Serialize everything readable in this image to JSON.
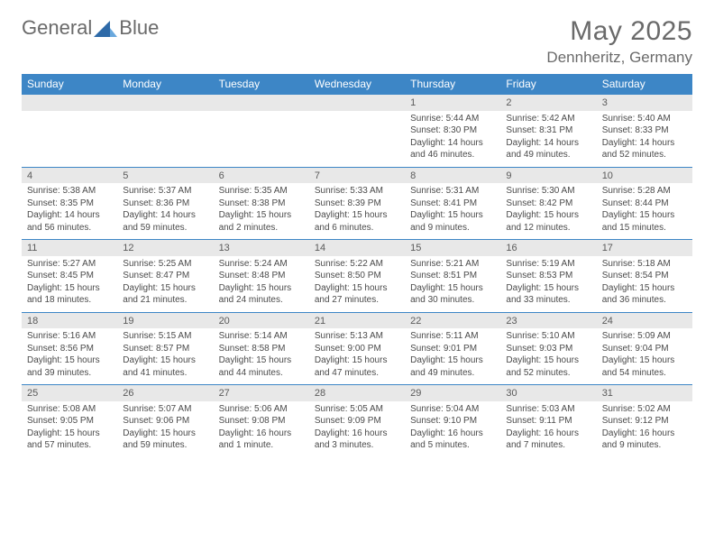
{
  "brand": {
    "part1": "General",
    "part2": "Blue"
  },
  "title": "May 2025",
  "subtitle": "Dennheritz, Germany",
  "colors": {
    "header_bg": "#3d86c6",
    "header_text": "#ffffff",
    "daynum_bg": "#e8e8e8",
    "body_text": "#4a4a4a",
    "logo_accent": "#2e6aa8"
  },
  "day_labels": [
    "Sunday",
    "Monday",
    "Tuesday",
    "Wednesday",
    "Thursday",
    "Friday",
    "Saturday"
  ],
  "weeks": [
    [
      null,
      null,
      null,
      null,
      {
        "n": "1",
        "sr": "Sunrise: 5:44 AM",
        "ss": "Sunset: 8:30 PM",
        "dl": "Daylight: 14 hours and 46 minutes."
      },
      {
        "n": "2",
        "sr": "Sunrise: 5:42 AM",
        "ss": "Sunset: 8:31 PM",
        "dl": "Daylight: 14 hours and 49 minutes."
      },
      {
        "n": "3",
        "sr": "Sunrise: 5:40 AM",
        "ss": "Sunset: 8:33 PM",
        "dl": "Daylight: 14 hours and 52 minutes."
      }
    ],
    [
      {
        "n": "4",
        "sr": "Sunrise: 5:38 AM",
        "ss": "Sunset: 8:35 PM",
        "dl": "Daylight: 14 hours and 56 minutes."
      },
      {
        "n": "5",
        "sr": "Sunrise: 5:37 AM",
        "ss": "Sunset: 8:36 PM",
        "dl": "Daylight: 14 hours and 59 minutes."
      },
      {
        "n": "6",
        "sr": "Sunrise: 5:35 AM",
        "ss": "Sunset: 8:38 PM",
        "dl": "Daylight: 15 hours and 2 minutes."
      },
      {
        "n": "7",
        "sr": "Sunrise: 5:33 AM",
        "ss": "Sunset: 8:39 PM",
        "dl": "Daylight: 15 hours and 6 minutes."
      },
      {
        "n": "8",
        "sr": "Sunrise: 5:31 AM",
        "ss": "Sunset: 8:41 PM",
        "dl": "Daylight: 15 hours and 9 minutes."
      },
      {
        "n": "9",
        "sr": "Sunrise: 5:30 AM",
        "ss": "Sunset: 8:42 PM",
        "dl": "Daylight: 15 hours and 12 minutes."
      },
      {
        "n": "10",
        "sr": "Sunrise: 5:28 AM",
        "ss": "Sunset: 8:44 PM",
        "dl": "Daylight: 15 hours and 15 minutes."
      }
    ],
    [
      {
        "n": "11",
        "sr": "Sunrise: 5:27 AM",
        "ss": "Sunset: 8:45 PM",
        "dl": "Daylight: 15 hours and 18 minutes."
      },
      {
        "n": "12",
        "sr": "Sunrise: 5:25 AM",
        "ss": "Sunset: 8:47 PM",
        "dl": "Daylight: 15 hours and 21 minutes."
      },
      {
        "n": "13",
        "sr": "Sunrise: 5:24 AM",
        "ss": "Sunset: 8:48 PM",
        "dl": "Daylight: 15 hours and 24 minutes."
      },
      {
        "n": "14",
        "sr": "Sunrise: 5:22 AM",
        "ss": "Sunset: 8:50 PM",
        "dl": "Daylight: 15 hours and 27 minutes."
      },
      {
        "n": "15",
        "sr": "Sunrise: 5:21 AM",
        "ss": "Sunset: 8:51 PM",
        "dl": "Daylight: 15 hours and 30 minutes."
      },
      {
        "n": "16",
        "sr": "Sunrise: 5:19 AM",
        "ss": "Sunset: 8:53 PM",
        "dl": "Daylight: 15 hours and 33 minutes."
      },
      {
        "n": "17",
        "sr": "Sunrise: 5:18 AM",
        "ss": "Sunset: 8:54 PM",
        "dl": "Daylight: 15 hours and 36 minutes."
      }
    ],
    [
      {
        "n": "18",
        "sr": "Sunrise: 5:16 AM",
        "ss": "Sunset: 8:56 PM",
        "dl": "Daylight: 15 hours and 39 minutes."
      },
      {
        "n": "19",
        "sr": "Sunrise: 5:15 AM",
        "ss": "Sunset: 8:57 PM",
        "dl": "Daylight: 15 hours and 41 minutes."
      },
      {
        "n": "20",
        "sr": "Sunrise: 5:14 AM",
        "ss": "Sunset: 8:58 PM",
        "dl": "Daylight: 15 hours and 44 minutes."
      },
      {
        "n": "21",
        "sr": "Sunrise: 5:13 AM",
        "ss": "Sunset: 9:00 PM",
        "dl": "Daylight: 15 hours and 47 minutes."
      },
      {
        "n": "22",
        "sr": "Sunrise: 5:11 AM",
        "ss": "Sunset: 9:01 PM",
        "dl": "Daylight: 15 hours and 49 minutes."
      },
      {
        "n": "23",
        "sr": "Sunrise: 5:10 AM",
        "ss": "Sunset: 9:03 PM",
        "dl": "Daylight: 15 hours and 52 minutes."
      },
      {
        "n": "24",
        "sr": "Sunrise: 5:09 AM",
        "ss": "Sunset: 9:04 PM",
        "dl": "Daylight: 15 hours and 54 minutes."
      }
    ],
    [
      {
        "n": "25",
        "sr": "Sunrise: 5:08 AM",
        "ss": "Sunset: 9:05 PM",
        "dl": "Daylight: 15 hours and 57 minutes."
      },
      {
        "n": "26",
        "sr": "Sunrise: 5:07 AM",
        "ss": "Sunset: 9:06 PM",
        "dl": "Daylight: 15 hours and 59 minutes."
      },
      {
        "n": "27",
        "sr": "Sunrise: 5:06 AM",
        "ss": "Sunset: 9:08 PM",
        "dl": "Daylight: 16 hours and 1 minute."
      },
      {
        "n": "28",
        "sr": "Sunrise: 5:05 AM",
        "ss": "Sunset: 9:09 PM",
        "dl": "Daylight: 16 hours and 3 minutes."
      },
      {
        "n": "29",
        "sr": "Sunrise: 5:04 AM",
        "ss": "Sunset: 9:10 PM",
        "dl": "Daylight: 16 hours and 5 minutes."
      },
      {
        "n": "30",
        "sr": "Sunrise: 5:03 AM",
        "ss": "Sunset: 9:11 PM",
        "dl": "Daylight: 16 hours and 7 minutes."
      },
      {
        "n": "31",
        "sr": "Sunrise: 5:02 AM",
        "ss": "Sunset: 9:12 PM",
        "dl": "Daylight: 16 hours and 9 minutes."
      }
    ]
  ]
}
